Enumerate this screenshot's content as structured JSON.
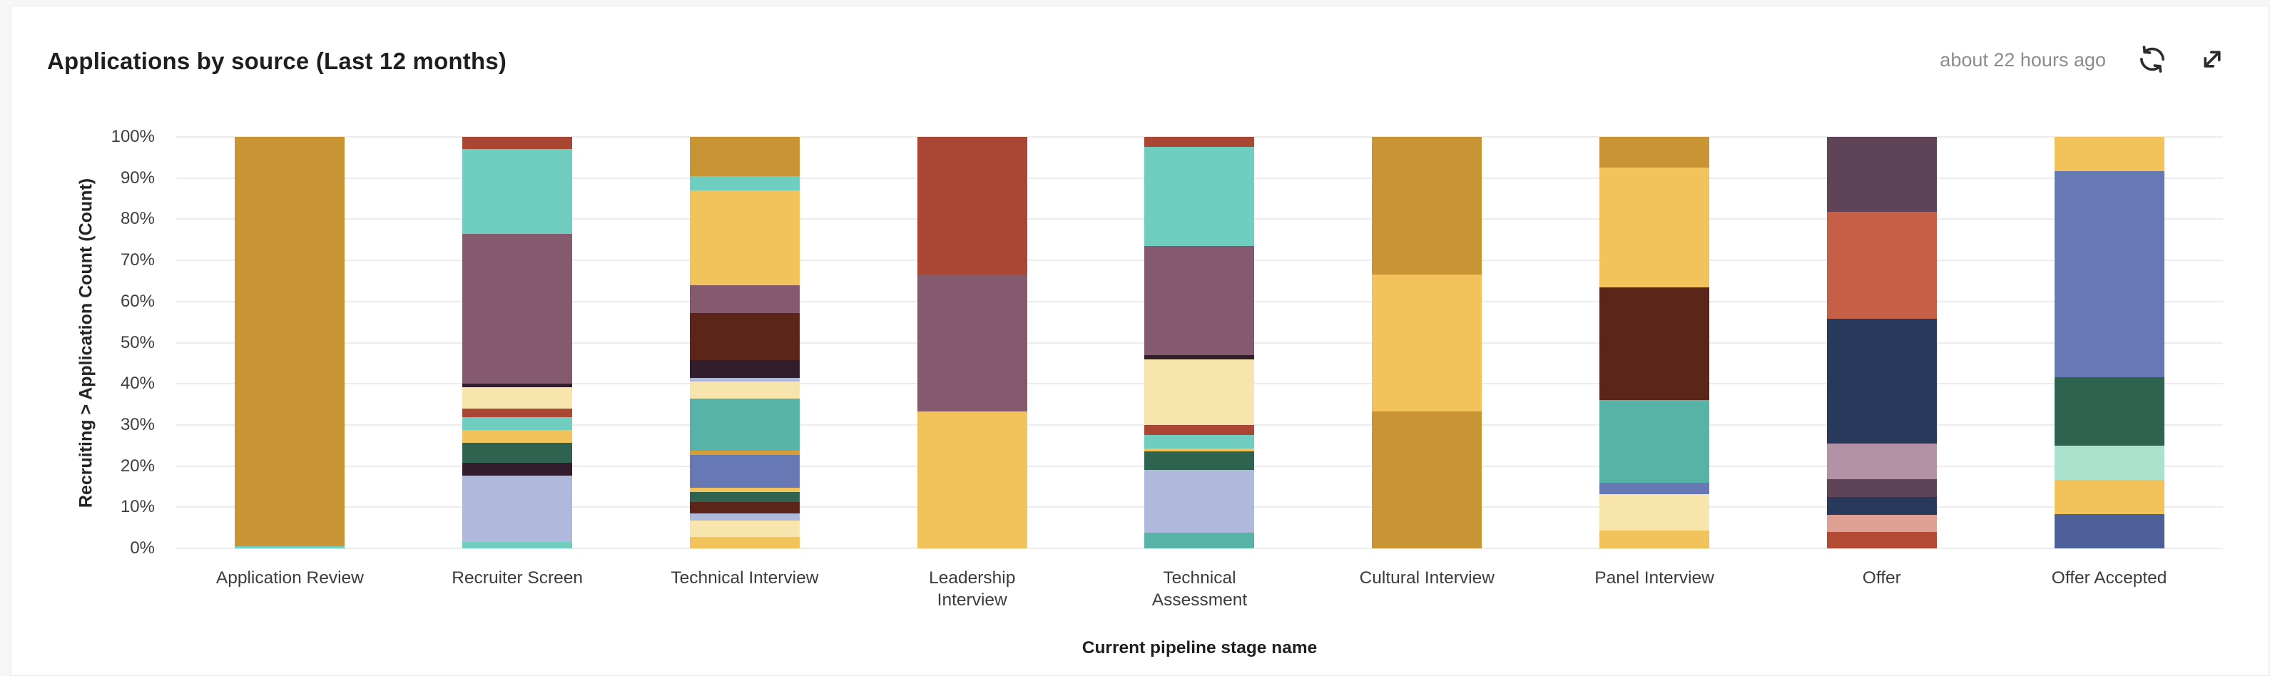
{
  "header": {
    "title": "Applications by source (Last 12 months)",
    "last_refreshed": "about 22 hours ago"
  },
  "icons": {
    "refresh": "circular-arrows-refresh",
    "expand": "diagonal-expand-arrows"
  },
  "palette": {
    "goldenrod": "#C99433",
    "amber": "#D89E36",
    "gold": "#F2C25B",
    "cream": "#F8E5AE",
    "teal": "#6FCEC0",
    "teal_dark": "#57B3A8",
    "mauve": "#855A6E",
    "brick": "#A94634",
    "brick_bright": "#B34A33",
    "dark_maroon": "#311D2B",
    "dark_brown": "#5C2519",
    "forest": "#2E6350",
    "periwinkle": "#AEB9DC",
    "slate_blue": "#6779B4",
    "slate_dark": "#4C5F97",
    "navy": "#28395C",
    "plum": "#5F4458",
    "terracotta": "#C65F45",
    "rose": "#B292A4",
    "salmon": "#DFA094",
    "mint": "#A9E2CD"
  },
  "chart_data": {
    "type": "bar",
    "stacked": true,
    "units": "percent",
    "grid": true,
    "legend": "none",
    "title": "Applications by source (Last 12 months)",
    "xlabel": "Current pipeline stage name",
    "ylabel": "Recruiting > Application Count (Count)",
    "ylim": [
      0,
      100
    ],
    "y_ticks": [
      "0%",
      "10%",
      "20%",
      "30%",
      "40%",
      "50%",
      "60%",
      "70%",
      "80%",
      "90%",
      "100%"
    ],
    "categories": [
      "Application Review",
      "Recruiter Screen",
      "Technical Interview",
      "Leadership Interview",
      "Technical Assessment",
      "Cultural Interview",
      "Panel Interview",
      "Offer",
      "Offer Accepted"
    ],
    "bars": [
      {
        "category": "Application Review",
        "label_lines": [
          "Application Review"
        ],
        "segments": [
          [
            "goldenrod",
            99.5
          ],
          [
            "teal",
            0.5
          ]
        ]
      },
      {
        "category": "Recruiter Screen",
        "label_lines": [
          "Recruiter Screen"
        ],
        "segments": [
          [
            "brick",
            3.0
          ],
          [
            "teal",
            20.5
          ],
          [
            "mauve",
            36.5
          ],
          [
            "dark_maroon",
            0.8
          ],
          [
            "cream",
            5.2
          ],
          [
            "brick",
            2.1
          ],
          [
            "teal",
            3.1
          ],
          [
            "gold",
            3.2
          ],
          [
            "forest",
            4.9
          ],
          [
            "dark_maroon",
            3.1
          ],
          [
            "periwinkle",
            16.1
          ],
          [
            "teal",
            1.5
          ]
        ]
      },
      {
        "category": "Technical Interview",
        "label_lines": [
          "Technical Interview"
        ],
        "segments": [
          [
            "goldenrod",
            9.5
          ],
          [
            "teal",
            3.5
          ],
          [
            "gold",
            23.0
          ],
          [
            "mauve",
            6.8
          ],
          [
            "dark_brown",
            11.5
          ],
          [
            "dark_maroon",
            4.2
          ],
          [
            "periwinkle",
            1.0
          ],
          [
            "cream",
            4.2
          ],
          [
            "teal_dark",
            12.6
          ],
          [
            "amber",
            1.0
          ],
          [
            "slate_blue",
            8.0
          ],
          [
            "gold",
            1.0
          ],
          [
            "forest",
            2.5
          ],
          [
            "dark_brown",
            2.8
          ],
          [
            "periwinkle",
            1.7
          ],
          [
            "cream",
            3.9
          ],
          [
            "gold",
            2.8
          ]
        ]
      },
      {
        "category": "Leadership Interview",
        "label_lines": [
          "Leadership",
          "Interview"
        ],
        "segments": [
          [
            "brick",
            33.4
          ],
          [
            "mauve",
            33.3
          ],
          [
            "gold",
            33.3
          ]
        ]
      },
      {
        "category": "Technical Assessment",
        "label_lines": [
          "Technical",
          "Assessment"
        ],
        "segments": [
          [
            "brick",
            2.5
          ],
          [
            "teal",
            24.0
          ],
          [
            "mauve",
            26.5
          ],
          [
            "dark_maroon",
            1.0
          ],
          [
            "cream",
            16.0
          ],
          [
            "brick",
            2.5
          ],
          [
            "teal",
            3.2
          ],
          [
            "gold",
            0.8
          ],
          [
            "forest",
            4.5
          ],
          [
            "periwinkle",
            15.2
          ],
          [
            "teal_dark",
            3.8
          ]
        ]
      },
      {
        "category": "Cultural Interview",
        "label_lines": [
          "Cultural Interview"
        ],
        "segments": [
          [
            "goldenrod",
            33.4
          ],
          [
            "gold",
            33.3
          ],
          [
            "goldenrod",
            33.3
          ]
        ]
      },
      {
        "category": "Panel Interview",
        "label_lines": [
          "Panel Interview"
        ],
        "segments": [
          [
            "goldenrod",
            7.4
          ],
          [
            "gold",
            29.2
          ],
          [
            "dark_brown",
            27.4
          ],
          [
            "teal_dark",
            20.0
          ],
          [
            "slate_blue",
            2.8
          ],
          [
            "cream",
            8.8
          ],
          [
            "gold",
            4.4
          ]
        ]
      },
      {
        "category": "Offer",
        "label_lines": [
          "Offer"
        ],
        "segments": [
          [
            "plum",
            18.2
          ],
          [
            "terracotta",
            26.0
          ],
          [
            "navy",
            30.3
          ],
          [
            "rose",
            8.7
          ],
          [
            "plum",
            4.3
          ],
          [
            "navy",
            4.4
          ],
          [
            "salmon",
            4.1
          ],
          [
            "brick_bright",
            4.0
          ]
        ]
      },
      {
        "category": "Offer Accepted",
        "label_lines": [
          "Offer Accepted"
        ],
        "segments": [
          [
            "gold",
            8.4
          ],
          [
            "slate_blue",
            50.0
          ],
          [
            "forest",
            16.6
          ],
          [
            "mint",
            8.4
          ],
          [
            "gold",
            8.3
          ],
          [
            "slate_dark",
            8.3
          ]
        ]
      }
    ]
  }
}
